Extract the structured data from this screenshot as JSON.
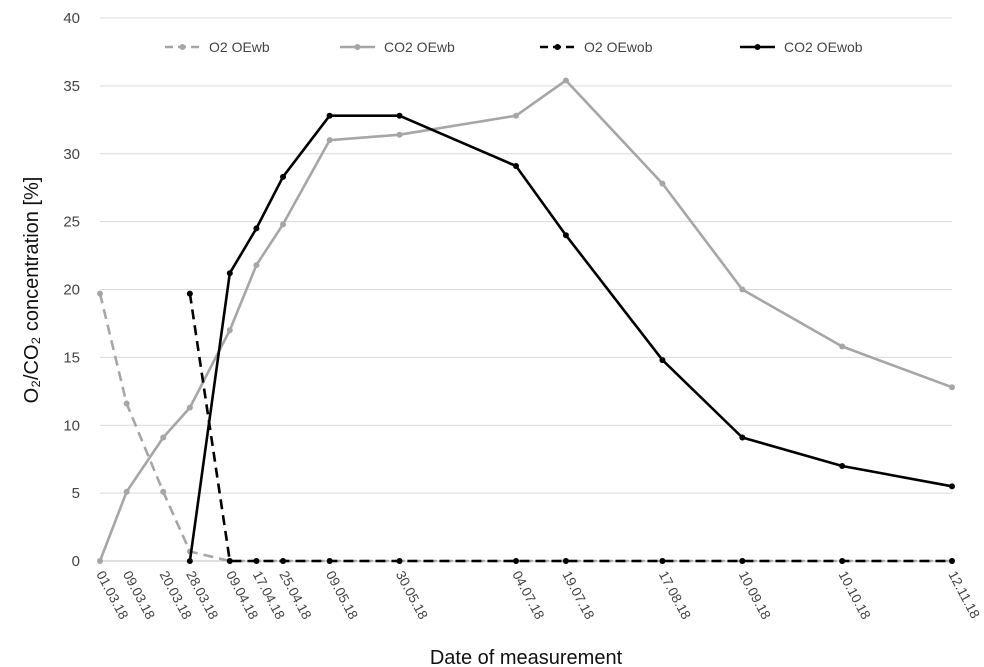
{
  "chart_data": {
    "type": "line",
    "title": "",
    "xlabel": "Date of measurement",
    "ylabel": "O₂/CO₂ concentration [%]",
    "ylim": [
      0,
      40
    ],
    "yticks": [
      0,
      5,
      10,
      15,
      20,
      25,
      30,
      35,
      40
    ],
    "x_axis_type": "date",
    "x": [
      "01.03.18",
      "09.03.18",
      "20.03.18",
      "28.03.18",
      "09.04.18",
      "17.04.18",
      "25.04.18",
      "09.05.18",
      "30.05.18",
      "04.07.18",
      "19.07.18",
      "17.08.18",
      "10.09.18",
      "10.10.18",
      "12.11.18"
    ],
    "grid": true,
    "legend_position": "top",
    "series": [
      {
        "name": "O2 OEwb",
        "color": "#a6a6a6",
        "dash": "dashed",
        "points": [
          [
            "01.03.18",
            19.7
          ],
          [
            "09.03.18",
            11.6
          ],
          [
            "20.03.18",
            5.1
          ],
          [
            "28.03.18",
            0.7
          ],
          [
            "09.04.18",
            0
          ],
          [
            "17.04.18",
            0
          ],
          [
            "25.04.18",
            0
          ],
          [
            "09.05.18",
            0
          ],
          [
            "30.05.18",
            0
          ],
          [
            "04.07.18",
            0
          ],
          [
            "19.07.18",
            0
          ],
          [
            "17.08.18",
            0
          ],
          [
            "10.09.18",
            0
          ],
          [
            "10.10.18",
            0
          ],
          [
            "12.11.18",
            0
          ]
        ]
      },
      {
        "name": "CO2 OEwb",
        "color": "#a6a6a6",
        "dash": "solid",
        "points": [
          [
            "01.03.18",
            0
          ],
          [
            "09.03.18",
            5.1
          ],
          [
            "20.03.18",
            9.1
          ],
          [
            "28.03.18",
            11.3
          ],
          [
            "09.04.18",
            17.0
          ],
          [
            "17.04.18",
            21.8
          ],
          [
            "25.04.18",
            24.8
          ],
          [
            "09.05.18",
            31.0
          ],
          [
            "30.05.18",
            31.4
          ],
          [
            "04.07.18",
            32.8
          ],
          [
            "19.07.18",
            35.4
          ],
          [
            "17.08.18",
            27.8
          ],
          [
            "10.09.18",
            20.0
          ],
          [
            "10.10.18",
            15.8
          ],
          [
            "12.11.18",
            12.8
          ]
        ]
      },
      {
        "name": "O2 OEwob",
        "color": "#000000",
        "dash": "dashed",
        "points": [
          [
            "28.03.18",
            19.7
          ],
          [
            "09.04.18",
            0
          ],
          [
            "17.04.18",
            0
          ],
          [
            "25.04.18",
            0
          ],
          [
            "09.05.18",
            0
          ],
          [
            "30.05.18",
            0
          ],
          [
            "04.07.18",
            0
          ],
          [
            "19.07.18",
            0
          ],
          [
            "17.08.18",
            0
          ],
          [
            "10.09.18",
            0
          ],
          [
            "10.10.18",
            0
          ],
          [
            "12.11.18",
            0
          ]
        ]
      },
      {
        "name": "CO2 OEwob",
        "color": "#000000",
        "dash": "solid",
        "points": [
          [
            "28.03.18",
            0
          ],
          [
            "09.04.18",
            21.2
          ],
          [
            "17.04.18",
            24.5
          ],
          [
            "25.04.18",
            28.3
          ],
          [
            "09.05.18",
            32.8
          ],
          [
            "30.05.18",
            32.8
          ],
          [
            "04.07.18",
            29.1
          ],
          [
            "19.07.18",
            24.0
          ],
          [
            "17.08.18",
            14.8
          ],
          [
            "10.09.18",
            9.1
          ],
          [
            "10.10.18",
            7.0
          ],
          [
            "12.11.18",
            5.5
          ]
        ]
      }
    ]
  }
}
